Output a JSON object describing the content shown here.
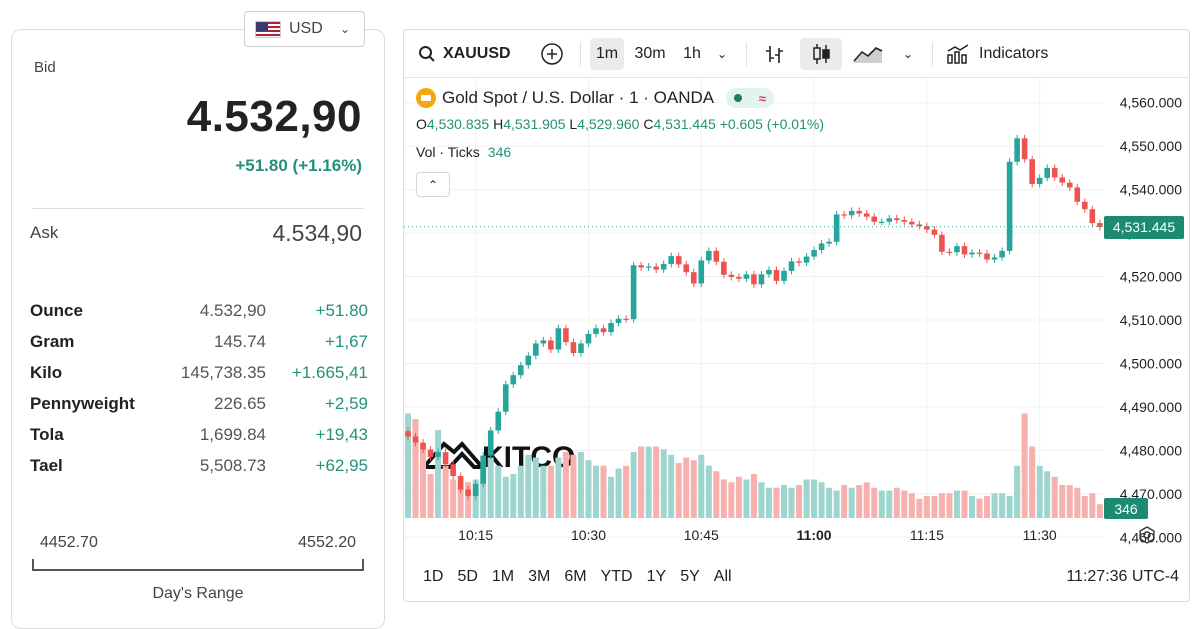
{
  "currency": {
    "code": "USD"
  },
  "quote": {
    "bid_label": "Bid",
    "bid": "4.532,90",
    "change": "+51.80 (+1.16%)",
    "ask_label": "Ask",
    "ask": "4.534,90"
  },
  "units": [
    {
      "name": "Ounce",
      "price": "4.532,90",
      "change": "+51.80"
    },
    {
      "name": "Gram",
      "price": "145.74",
      "change": "+1,67"
    },
    {
      "name": "Kilo",
      "price": "145,738.35",
      "change": "+1.665,41"
    },
    {
      "name": "Pennyweight",
      "price": "226.65",
      "change": "+2,59"
    },
    {
      "name": "Tola",
      "price": "1,699.84",
      "change": "+19,43"
    },
    {
      "name": "Tael",
      "price": "5,508.73",
      "change": "+62,95"
    }
  ],
  "days_range": {
    "low": "4452.70",
    "high": "4552.20",
    "label": "Day's Range"
  },
  "chart": {
    "symbol": "XAUUSD",
    "intervals": [
      "1m",
      "30m",
      "1h"
    ],
    "active_interval": "1m",
    "indicators_label": "Indicators",
    "title": "Gold Spot / U.S. Dollar · 1 · OANDA",
    "ohlc": {
      "o_label": "O",
      "o": "4,530.835",
      "h_label": "H",
      "h": "4,531.905",
      "l_label": "L",
      "l": "4,529.960",
      "c_label": "C",
      "c": "4,531.445",
      "change": "+0.605 (+0.01%)"
    },
    "volume_label": "Vol · Ticks",
    "volume_value": "346",
    "last_price_tag": "4,531.445",
    "volume_tag": "346",
    "watermark": "KITCO",
    "range_buttons": [
      "1D",
      "5D",
      "1M",
      "3M",
      "6M",
      "YTD",
      "1Y",
      "5Y",
      "All"
    ],
    "clock": "11:27:36 UTC-4",
    "colors": {
      "up": "#26a69a",
      "down": "#ef5350",
      "up_vol": "#9ed6cf",
      "down_vol": "#f6b0ae",
      "tag": "#1d8a73"
    }
  },
  "chart_data": {
    "type": "candlestick",
    "price_axis": {
      "ticks": [
        "4,560.000",
        "4,550.000",
        "4,540.000",
        "4,530.000",
        "4,520.000",
        "4,510.000",
        "4,500.000",
        "4,490.000",
        "4,480.000",
        "4,470.000",
        "4,460.000"
      ],
      "range": [
        4458,
        4562
      ]
    },
    "time_axis": {
      "ticks": [
        "10:15",
        "10:30",
        "10:45",
        "11:00",
        "11:15",
        "11:30"
      ],
      "bold": "11:00"
    },
    "start_time": "10:06",
    "close": [
      4483.2,
      4481.8,
      4480.2,
      4478.5,
      4479.6,
      4476.8,
      4474.1,
      4471.0,
      4469.5,
      4472.3,
      4478.8,
      4484.6,
      4488.9,
      4495.2,
      4497.3,
      4499.6,
      4501.8,
      4504.6,
      4505.3,
      4503.2,
      4508.1,
      4504.9,
      4502.4,
      4504.6,
      4506.8,
      4508.1,
      4507.2,
      4509.3,
      4510.3,
      4510.2,
      4522.6,
      4522.1,
      4522.3,
      4521.6,
      4522.9,
      4524.7,
      4522.8,
      4521.0,
      4518.4,
      4523.7,
      4525.9,
      4523.4,
      4520.4,
      4519.9,
      4519.5,
      4520.5,
      4518.2,
      4520.5,
      4521.5,
      4519.0,
      4521.3,
      4523.5,
      4523.2,
      4524.6,
      4526.1,
      4527.6,
      4528.0,
      4534.3,
      4534.1,
      4535.1,
      4534.5,
      4533.8,
      4532.6,
      4532.6,
      4533.4,
      4533.0,
      4532.6,
      4532.0,
      4531.6,
      4530.8,
      4529.6,
      4525.7,
      4525.6,
      4527.0,
      4525.1,
      4525.5,
      4525.3,
      4523.9,
      4524.4,
      4525.9,
      4546.4,
      4551.8,
      4547.0,
      4541.3,
      4542.7,
      4545.0,
      4542.8,
      4541.6,
      4540.5,
      4537.2,
      4535.5,
      4532.3,
      4531.4
    ],
    "volume": [
      190,
      180,
      130,
      80,
      160,
      95,
      70,
      55,
      65,
      70,
      90,
      110,
      95,
      75,
      80,
      95,
      115,
      110,
      95,
      95,
      110,
      120,
      115,
      120,
      105,
      95,
      95,
      75,
      90,
      95,
      120,
      130,
      130,
      130,
      125,
      115,
      100,
      110,
      105,
      115,
      95,
      85,
      70,
      65,
      75,
      70,
      80,
      65,
      55,
      55,
      60,
      55,
      60,
      70,
      70,
      65,
      55,
      50,
      60,
      55,
      60,
      65,
      55,
      50,
      50,
      55,
      50,
      45,
      35,
      40,
      40,
      45,
      45,
      50,
      50,
      40,
      35,
      40,
      45,
      45,
      40,
      95,
      190,
      130,
      95,
      85,
      75,
      60,
      60,
      55,
      40,
      45,
      25
    ]
  }
}
